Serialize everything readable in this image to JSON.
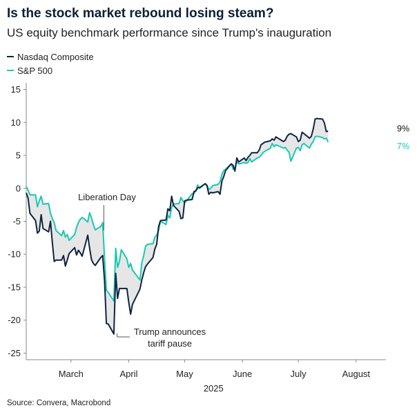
{
  "header": {
    "title": "Is the stock market rebound losing steam?",
    "subtitle": "US equity benchmark performance since Trump's inauguration"
  },
  "source": "Source: Convera, Macrobond",
  "colors": {
    "nasdaq": "#0e2340",
    "sp500": "#19c8b4",
    "fill": "#e6e6e6",
    "axis": "#888888"
  },
  "chart_data": {
    "type": "line",
    "title": "Is the stock market rebound losing steam?",
    "subtitle": "US equity benchmark performance since Trump's inauguration",
    "xlabel": "2025",
    "ylabel": "",
    "ylim": [
      -26,
      16
    ],
    "yticks": [
      15,
      10,
      5,
      0,
      -5,
      -10,
      -15,
      -20,
      -25
    ],
    "x_tick_labels": [
      "March",
      "April",
      "May",
      "June",
      "July",
      "August"
    ],
    "x_tick_dates": [
      "2025-03-15",
      "2025-04-15",
      "2025-05-15",
      "2025-06-15",
      "2025-07-15",
      "2025-08-15"
    ],
    "xlim": [
      "2025-02-19",
      "2025-08-31"
    ],
    "legend_position": "top-left",
    "grid": false,
    "end_labels": {
      "nasdaq": "9%",
      "sp500": "7%"
    },
    "annotations": [
      {
        "text": "Liberation Day",
        "date": "2025-04-02",
        "value": -5.8
      },
      {
        "text": "Trump announces tariff pause",
        "date": "2025-04-08",
        "value": -22.0
      }
    ],
    "series": [
      {
        "name": "Nasdaq Composite",
        "color": "#0e2340",
        "points": [
          [
            "2025-02-19",
            -0.7
          ],
          [
            "2025-02-20",
            -1.5
          ],
          [
            "2025-02-21",
            -3.8
          ],
          [
            "2025-02-24",
            -4.9
          ],
          [
            "2025-02-25",
            -6.8
          ],
          [
            "2025-02-26",
            -6.5
          ],
          [
            "2025-02-27",
            -4.0
          ],
          [
            "2025-02-28",
            -6.1
          ],
          [
            "2025-03-03",
            -6.6
          ],
          [
            "2025-03-04",
            -5.0
          ],
          [
            "2025-03-05",
            -8.2
          ],
          [
            "2025-03-06",
            -11.1
          ],
          [
            "2025-03-07",
            -10.9
          ],
          [
            "2025-03-10",
            -10.9
          ],
          [
            "2025-03-11",
            -10.2
          ],
          [
            "2025-03-12",
            -11.8
          ],
          [
            "2025-03-13",
            -10.9
          ],
          [
            "2025-03-14",
            -9.9
          ],
          [
            "2025-03-17",
            -9.0
          ],
          [
            "2025-03-18",
            -10.1
          ],
          [
            "2025-03-19",
            -9.4
          ],
          [
            "2025-03-20",
            -9.8
          ],
          [
            "2025-03-21",
            -10.3
          ],
          [
            "2025-03-24",
            -7.1
          ],
          [
            "2025-03-25",
            -9.1
          ],
          [
            "2025-03-26",
            -10.8
          ],
          [
            "2025-03-27",
            -11.4
          ],
          [
            "2025-03-28",
            -11.7
          ],
          [
            "2025-03-31",
            -10.5
          ],
          [
            "2025-04-01",
            -10.2
          ],
          [
            "2025-04-02",
            -14.0
          ],
          [
            "2025-04-03",
            -20.5
          ],
          [
            "2025-04-04",
            -20.6
          ],
          [
            "2025-04-07",
            -22.1
          ],
          [
            "2025-04-08",
            -12.9
          ],
          [
            "2025-04-09",
            -16.7
          ],
          [
            "2025-04-10",
            -15.2
          ],
          [
            "2025-04-11",
            -15.2
          ],
          [
            "2025-04-14",
            -15.2
          ],
          [
            "2025-04-15",
            -17.3
          ],
          [
            "2025-04-16",
            -19.1
          ],
          [
            "2025-04-17",
            -17.6
          ],
          [
            "2025-04-21",
            -15.3
          ],
          [
            "2025-04-22",
            -13.9
          ],
          [
            "2025-04-23",
            -12.8
          ],
          [
            "2025-04-24",
            -11.9
          ],
          [
            "2025-04-25",
            -11.5
          ],
          [
            "2025-04-28",
            -10.5
          ],
          [
            "2025-04-29",
            -9.2
          ],
          [
            "2025-04-30",
            -8.5
          ],
          [
            "2025-05-01",
            -5.8
          ],
          [
            "2025-05-02",
            -4.9
          ],
          [
            "2025-05-05",
            -4.8
          ],
          [
            "2025-05-06",
            -3.1
          ],
          [
            "2025-05-07",
            -3.4
          ],
          [
            "2025-05-08",
            -1.2
          ],
          [
            "2025-05-09",
            -2.6
          ],
          [
            "2025-05-12",
            -3.5
          ],
          [
            "2025-05-13",
            -4.6
          ],
          [
            "2025-05-14",
            -4.5
          ],
          [
            "2025-05-15",
            -1.9
          ],
          [
            "2025-05-16",
            -1.8
          ],
          [
            "2025-05-19",
            -1.7
          ],
          [
            "2025-05-20",
            -0.5
          ],
          [
            "2025-05-21",
            -0.4
          ],
          [
            "2025-05-22",
            0.1
          ],
          [
            "2025-05-23",
            0.1
          ],
          [
            "2025-05-26",
            0.7
          ],
          [
            "2025-05-27",
            0.4
          ],
          [
            "2025-05-28",
            -0.9
          ],
          [
            "2025-05-29",
            -0.6
          ],
          [
            "2025-05-30",
            -0.7
          ],
          [
            "2025-06-02",
            -0.5
          ],
          [
            "2025-06-03",
            -0.9
          ],
          [
            "2025-06-04",
            1.1
          ],
          [
            "2025-06-05",
            1.8
          ],
          [
            "2025-06-06",
            2.7
          ],
          [
            "2025-06-09",
            3.7
          ],
          [
            "2025-06-10",
            3.5
          ],
          [
            "2025-06-11",
            2.6
          ],
          [
            "2025-06-12",
            4.6
          ],
          [
            "2025-06-13",
            4.0
          ],
          [
            "2025-06-16",
            4.6
          ],
          [
            "2025-06-17",
            4.2
          ],
          [
            "2025-06-18",
            4.7
          ],
          [
            "2025-06-19",
            5.0
          ],
          [
            "2025-06-20",
            5.4
          ],
          [
            "2025-06-23",
            5.4
          ],
          [
            "2025-06-24",
            5.8
          ],
          [
            "2025-06-25",
            6.6
          ],
          [
            "2025-06-26",
            6.8
          ],
          [
            "2025-06-27",
            7.0
          ],
          [
            "2025-06-30",
            7.2
          ],
          [
            "2025-07-01",
            7.5
          ],
          [
            "2025-07-02",
            7.3
          ],
          [
            "2025-07-03",
            7.8
          ],
          [
            "2025-07-07",
            7.1
          ],
          [
            "2025-07-08",
            7.3
          ],
          [
            "2025-07-09",
            7.9
          ],
          [
            "2025-07-10",
            8.2
          ],
          [
            "2025-07-11",
            8.3
          ],
          [
            "2025-07-14",
            7.8
          ],
          [
            "2025-07-15",
            7.1
          ],
          [
            "2025-07-16",
            7.3
          ],
          [
            "2025-07-17",
            8.5
          ],
          [
            "2025-07-18",
            8.3
          ],
          [
            "2025-07-21",
            7.6
          ],
          [
            "2025-07-22",
            7.9
          ],
          [
            "2025-07-23",
            9.0
          ],
          [
            "2025-07-24",
            10.5
          ],
          [
            "2025-07-25",
            10.6
          ],
          [
            "2025-07-28",
            10.5
          ],
          [
            "2025-07-29",
            9.9
          ],
          [
            "2025-07-30",
            8.6
          ],
          [
            "2025-07-31",
            8.7
          ]
        ]
      },
      {
        "name": "S&P 500",
        "color": "#19c8b4",
        "points": [
          [
            "2025-02-19",
            0.3
          ],
          [
            "2025-02-20",
            -0.3
          ],
          [
            "2025-02-21",
            -1.0
          ],
          [
            "2025-02-24",
            -1.0
          ],
          [
            "2025-02-25",
            -2.8
          ],
          [
            "2025-02-26",
            -1.9
          ],
          [
            "2025-02-27",
            -1.2
          ],
          [
            "2025-02-28",
            -2.4
          ],
          [
            "2025-03-03",
            -2.3
          ],
          [
            "2025-03-04",
            -3.8
          ],
          [
            "2025-03-05",
            -4.6
          ],
          [
            "2025-03-06",
            -5.2
          ],
          [
            "2025-03-07",
            -6.4
          ],
          [
            "2025-03-10",
            -7.2
          ],
          [
            "2025-03-11",
            -6.4
          ],
          [
            "2025-03-12",
            -7.4
          ],
          [
            "2025-03-13",
            -7.0
          ],
          [
            "2025-03-14",
            -7.9
          ],
          [
            "2025-03-17",
            -7.0
          ],
          [
            "2025-03-18",
            -5.9
          ],
          [
            "2025-03-19",
            -5.2
          ],
          [
            "2025-03-20",
            -4.7
          ],
          [
            "2025-03-21",
            -4.4
          ],
          [
            "2025-03-24",
            -5.1
          ],
          [
            "2025-03-25",
            -3.7
          ],
          [
            "2025-03-26",
            -4.5
          ],
          [
            "2025-03-27",
            -5.5
          ],
          [
            "2025-03-28",
            -6.3
          ],
          [
            "2025-03-31",
            -5.8
          ],
          [
            "2025-04-01",
            -5.2
          ],
          [
            "2025-04-02",
            -10.6
          ],
          [
            "2025-04-03",
            -15.5
          ],
          [
            "2025-04-04",
            -15.8
          ],
          [
            "2025-04-07",
            -17.1
          ],
          [
            "2025-04-08",
            -9.1
          ],
          [
            "2025-04-09",
            -12.0
          ],
          [
            "2025-04-10",
            -11.1
          ],
          [
            "2025-04-11",
            -9.3
          ],
          [
            "2025-04-14",
            -10.7
          ],
          [
            "2025-04-15",
            -12.0
          ],
          [
            "2025-04-16",
            -11.4
          ],
          [
            "2025-04-17",
            -12.4
          ],
          [
            "2025-04-21",
            -13.9
          ],
          [
            "2025-04-22",
            -11.3
          ],
          [
            "2025-04-23",
            -10.2
          ],
          [
            "2025-04-24",
            -8.8
          ],
          [
            "2025-04-25",
            -8.5
          ],
          [
            "2025-04-28",
            -8.4
          ],
          [
            "2025-04-29",
            -7.4
          ],
          [
            "2025-04-30",
            -7.1
          ],
          [
            "2025-05-01",
            -6.4
          ],
          [
            "2025-05-02",
            -5.0
          ],
          [
            "2025-05-05",
            -5.5
          ],
          [
            "2025-05-06",
            -4.1
          ],
          [
            "2025-05-07",
            -4.5
          ],
          [
            "2025-05-08",
            -2.9
          ],
          [
            "2025-05-09",
            -2.4
          ],
          [
            "2025-05-12",
            -2.3
          ],
          [
            "2025-05-13",
            -1.4
          ],
          [
            "2025-05-14",
            -1.9
          ],
          [
            "2025-05-15",
            -2.2
          ],
          [
            "2025-05-16",
            -1.9
          ],
          [
            "2025-05-19",
            -0.8
          ],
          [
            "2025-05-20",
            -0.8
          ],
          [
            "2025-05-21",
            -0.3
          ],
          [
            "2025-05-22",
            0.5
          ],
          [
            "2025-05-23",
            0.0
          ],
          [
            "2025-05-26",
            0.7
          ],
          [
            "2025-05-27",
            0.5
          ],
          [
            "2025-05-28",
            -0.2
          ],
          [
            "2025-05-29",
            0.0
          ],
          [
            "2025-05-30",
            0.4
          ],
          [
            "2025-06-02",
            0.6
          ],
          [
            "2025-06-03",
            1.0
          ],
          [
            "2025-06-04",
            2.1
          ],
          [
            "2025-06-05",
            2.7
          ],
          [
            "2025-06-06",
            2.9
          ],
          [
            "2025-06-09",
            3.7
          ],
          [
            "2025-06-10",
            2.9
          ],
          [
            "2025-06-11",
            3.1
          ],
          [
            "2025-06-12",
            4.0
          ],
          [
            "2025-06-13",
            3.7
          ],
          [
            "2025-06-16",
            3.9
          ],
          [
            "2025-06-17",
            3.8
          ],
          [
            "2025-06-18",
            3.9
          ],
          [
            "2025-06-19",
            4.5
          ],
          [
            "2025-06-20",
            4.0
          ],
          [
            "2025-06-23",
            4.6
          ],
          [
            "2025-06-24",
            4.7
          ],
          [
            "2025-06-25",
            5.0
          ],
          [
            "2025-06-26",
            5.4
          ],
          [
            "2025-06-27",
            5.6
          ],
          [
            "2025-06-30",
            6.1
          ],
          [
            "2025-07-01",
            6.8
          ],
          [
            "2025-07-02",
            6.3
          ],
          [
            "2025-07-03",
            6.6
          ],
          [
            "2025-07-07",
            6.1
          ],
          [
            "2025-07-08",
            6.2
          ],
          [
            "2025-07-09",
            5.8
          ],
          [
            "2025-07-10",
            5.5
          ],
          [
            "2025-07-11",
            4.1
          ],
          [
            "2025-07-14",
            6.1
          ],
          [
            "2025-07-15",
            6.2
          ],
          [
            "2025-07-16",
            5.7
          ],
          [
            "2025-07-17",
            6.6
          ],
          [
            "2025-07-18",
            6.8
          ],
          [
            "2025-07-21",
            6.1
          ],
          [
            "2025-07-22",
            6.7
          ],
          [
            "2025-07-23",
            7.1
          ],
          [
            "2025-07-24",
            7.8
          ],
          [
            "2025-07-25",
            7.9
          ],
          [
            "2025-07-28",
            7.7
          ],
          [
            "2025-07-29",
            7.5
          ],
          [
            "2025-07-30",
            7.6
          ],
          [
            "2025-07-31",
            7.0
          ]
        ]
      }
    ]
  }
}
